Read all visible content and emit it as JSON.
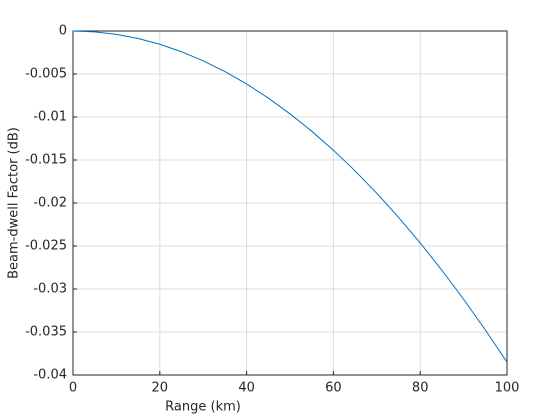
{
  "chart_data": {
    "type": "line",
    "xlabel": "Range (km)",
    "ylabel": "Beam-dwell Factor (dB)",
    "x": [
      0,
      5,
      10,
      15,
      20,
      25,
      30,
      35,
      40,
      45,
      50,
      55,
      60,
      65,
      70,
      75,
      80,
      85,
      90,
      95,
      100
    ],
    "series": [
      {
        "color": "#0072bd",
        "values": [
          0,
          -0.0001,
          -0.00039,
          -0.00087,
          -0.00154,
          -0.00241,
          -0.00347,
          -0.00472,
          -0.00616,
          -0.0078,
          -0.00963,
          -0.01165,
          -0.01386,
          -0.01627,
          -0.01887,
          -0.02166,
          -0.02464,
          -0.02782,
          -0.03119,
          -0.03475,
          -0.0385
        ]
      }
    ],
    "xlim": [
      0,
      100
    ],
    "xticks": [
      0,
      20,
      40,
      60,
      80,
      100
    ],
    "ylim": [
      -0.04,
      0
    ],
    "yticks": [
      0,
      -0.005,
      -0.01,
      -0.015,
      -0.02,
      -0.025,
      -0.03,
      -0.035,
      -0.04
    ],
    "grid": true
  }
}
